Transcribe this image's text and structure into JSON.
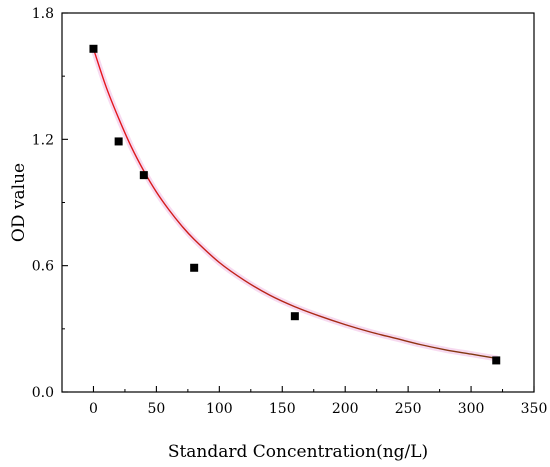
{
  "chart_data": {
    "type": "scatter",
    "title": "",
    "xlabel": "Standard Concentration(ng/L)",
    "ylabel": "OD value",
    "xlim": [
      -25,
      350
    ],
    "ylim": [
      0.0,
      1.8
    ],
    "x_ticks": [
      0,
      50,
      100,
      150,
      200,
      250,
      300,
      350
    ],
    "x_tick_labels": [
      "0",
      "50",
      "100",
      "150",
      "200",
      "250",
      "300",
      "350"
    ],
    "y_ticks": [
      0.0,
      0.6,
      1.2,
      1.8
    ],
    "y_tick_labels": [
      "0.0",
      "0.6",
      "1.2",
      "1.8"
    ],
    "grid": false,
    "legend": "none",
    "series": [
      {
        "points": [
          {
            "x": 0,
            "y": 1.63
          },
          {
            "x": 20,
            "y": 1.19
          },
          {
            "x": 40,
            "y": 1.03
          },
          {
            "x": 80,
            "y": 0.59
          },
          {
            "x": 160,
            "y": 0.36
          },
          {
            "x": 320,
            "y": 0.15
          }
        ],
        "marker": "square",
        "color": "#000000"
      }
    ],
    "fit_curve": {
      "x_range": [
        0,
        320
      ],
      "color_start": "#e8141c",
      "color_end": "#7a3a10",
      "halo_color": "#f6d6ee",
      "curve_points": [
        {
          "x": 0,
          "y": 1.63
        },
        {
          "x": 10,
          "y": 1.45
        },
        {
          "x": 20,
          "y": 1.3
        },
        {
          "x": 30,
          "y": 1.165
        },
        {
          "x": 40,
          "y": 1.05
        },
        {
          "x": 50,
          "y": 0.95
        },
        {
          "x": 60,
          "y": 0.865
        },
        {
          "x": 70,
          "y": 0.79
        },
        {
          "x": 80,
          "y": 0.725
        },
        {
          "x": 100,
          "y": 0.615
        },
        {
          "x": 120,
          "y": 0.53
        },
        {
          "x": 140,
          "y": 0.46
        },
        {
          "x": 160,
          "y": 0.405
        },
        {
          "x": 180,
          "y": 0.36
        },
        {
          "x": 200,
          "y": 0.32
        },
        {
          "x": 220,
          "y": 0.285
        },
        {
          "x": 240,
          "y": 0.255
        },
        {
          "x": 260,
          "y": 0.225
        },
        {
          "x": 280,
          "y": 0.2
        },
        {
          "x": 300,
          "y": 0.18
        },
        {
          "x": 320,
          "y": 0.16
        }
      ]
    }
  }
}
